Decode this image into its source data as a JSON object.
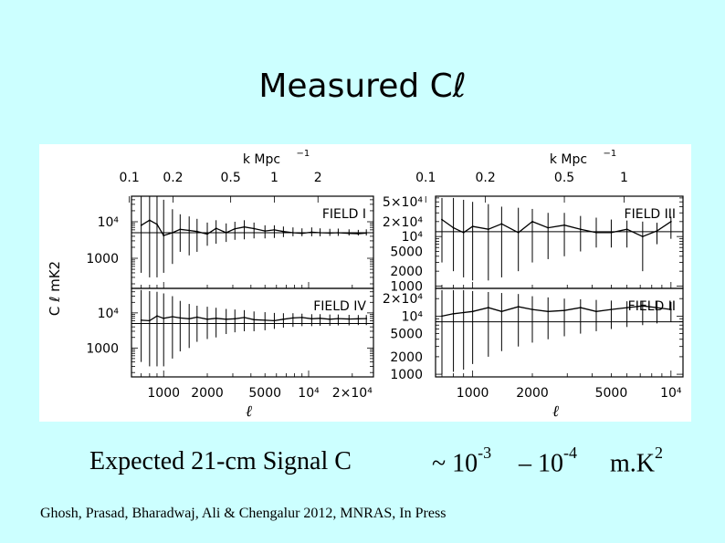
{
  "slide": {
    "title": "Measured Cℓ",
    "signal": {
      "prefix": "Expected 21-cm  Signal   C",
      "approx": "~ 10",
      "exp1": "-3",
      "dash": "– 10",
      "exp2": "-4",
      "unit": "m.K",
      "unit_exp": "2"
    },
    "citation": "Ghosh, Prasad, Bharadwaj, Ali & Chengalur 2012, MNRAS, In Press"
  },
  "colors": {
    "background": "#ccffff",
    "panel": "#ffffff",
    "ink": "#000000"
  },
  "chart_data": [
    {
      "type": "line",
      "panel": "FIELD I",
      "label": "FIELD I",
      "top_axis_label": "k Mpc",
      "top_axis_exp": "−1",
      "ylabel": "C ℓ mK2",
      "xlabel": "",
      "xscale": "log",
      "yscale": "log",
      "xlim": [
        600,
        28000
      ],
      "ylim": [
        150,
        50000
      ],
      "k_ticks": [
        0.1,
        0.2,
        0.5,
        1,
        2
      ],
      "k_tick_labels": [
        "0.1",
        "0.2",
        "0.5",
        "1",
        "2"
      ],
      "y_ticks": [
        10000,
        1000
      ],
      "y_tick_labels": [
        "10⁴",
        "1000"
      ],
      "x_ticks": [],
      "x_tick_labels": [],
      "reference_line": 5000,
      "x": [
        700,
        800,
        900,
        1000,
        1150,
        1300,
        1500,
        1700,
        2000,
        2300,
        2700,
        3100,
        3600,
        4200,
        5000,
        5800,
        6700,
        7800,
        9000,
        10500,
        12000,
        14000,
        16000,
        19000,
        22000,
        25000
      ],
      "y": [
        8000,
        11000,
        8500,
        4200,
        5000,
        6200,
        5800,
        5400,
        4600,
        6600,
        5000,
        6400,
        7200,
        6500,
        5600,
        6000,
        5400,
        5000,
        4800,
        5200,
        5000,
        4900,
        5000,
        4800,
        4700,
        4900
      ],
      "err_lo": [
        400,
        300,
        300,
        400,
        700,
        1500,
        1200,
        1500,
        2200,
        2500,
        2800,
        3200,
        3300,
        3500,
        3500,
        3600,
        3800,
        4000,
        4000,
        4000,
        4000,
        4100,
        4100,
        4200,
        4200,
        4200
      ],
      "err_hi": [
        50000,
        50000,
        50000,
        40000,
        22000,
        16000,
        14000,
        12000,
        9500,
        11000,
        9000,
        10000,
        11000,
        9500,
        8000,
        8000,
        7400,
        7000,
        6600,
        7000,
        6600,
        6400,
        6500,
        6200,
        6000,
        6200
      ]
    },
    {
      "type": "line",
      "panel": "FIELD III",
      "label": "FIELD III",
      "top_axis_label": "k Mpc",
      "top_axis_exp": "−1",
      "ylabel": "",
      "xlabel": "",
      "xscale": "log",
      "yscale": "log",
      "xlim": [
        650,
        11500
      ],
      "ylim": [
        900,
        65000
      ],
      "k_ticks": [
        0.1,
        0.2,
        0.5,
        1
      ],
      "k_tick_labels": [
        "0.1",
        "0.2",
        "0.5",
        "1"
      ],
      "y_ticks": [
        50000,
        20000,
        10000,
        5000,
        2000,
        1000
      ],
      "y_tick_labels": [
        "5×10⁴",
        "2×10⁴",
        "10⁴",
        "5000",
        "2000",
        "1000"
      ],
      "x_ticks": [],
      "x_tick_labels": [],
      "reference_line": 12500,
      "x": [
        700,
        800,
        900,
        1000,
        1200,
        1400,
        1700,
        2000,
        2400,
        2900,
        3500,
        4200,
        5000,
        6000,
        7200,
        8500,
        10000
      ],
      "y": [
        22000,
        15000,
        12000,
        16000,
        14000,
        18000,
        12000,
        20000,
        15000,
        17000,
        14000,
        12000,
        12000,
        14000,
        10000,
        13000,
        20000
      ],
      "err_lo": [
        3000,
        2000,
        1500,
        1300,
        1300,
        1500,
        2000,
        3000,
        3500,
        4000,
        5000,
        6000,
        6000,
        6000,
        2000,
        7000,
        9000
      ],
      "err_hi": [
        60000,
        60000,
        55000,
        50000,
        45000,
        40000,
        38000,
        36000,
        30000,
        30000,
        26000,
        24000,
        22000,
        21000,
        20000,
        19000,
        25000
      ]
    },
    {
      "type": "line",
      "panel": "FIELD IV",
      "label": "FIELD IV",
      "top_axis_label": "",
      "top_axis_exp": "",
      "ylabel": "",
      "xlabel": "ℓ",
      "xscale": "log",
      "yscale": "log",
      "xlim": [
        600,
        28000
      ],
      "ylim": [
        150,
        50000
      ],
      "k_ticks": [],
      "k_tick_labels": [],
      "y_ticks": [
        10000,
        1000
      ],
      "y_tick_labels": [
        "10⁴",
        "1000"
      ],
      "x_ticks": [
        1000,
        2000,
        5000,
        10000,
        20000
      ],
      "x_tick_labels": [
        "1000",
        "2000",
        "5000",
        "10⁴",
        "2×10⁴"
      ],
      "reference_line": 5000,
      "x": [
        700,
        800,
        900,
        1000,
        1150,
        1300,
        1500,
        1700,
        2000,
        2300,
        2700,
        3100,
        3600,
        4200,
        5000,
        5800,
        6700,
        7800,
        9000,
        10500,
        12000,
        14000,
        16000,
        19000,
        22000,
        25000
      ],
      "y": [
        6200,
        6000,
        8200,
        7000,
        7800,
        7200,
        6800,
        7600,
        6600,
        7000,
        6600,
        6800,
        7400,
        6400,
        6200,
        6000,
        6600,
        7200,
        7400,
        6800,
        7000,
        6600,
        6900,
        6700,
        6800,
        6900
      ],
      "err_lo": [
        400,
        300,
        300,
        300,
        500,
        800,
        1000,
        1500,
        1800,
        2000,
        2500,
        2800,
        3000,
        3000,
        3200,
        3500,
        3800,
        4000,
        4200,
        4200,
        4300,
        4300,
        4400,
        4400,
        4500,
        4500
      ],
      "err_hi": [
        45000,
        42000,
        40000,
        36000,
        30000,
        22000,
        18000,
        16000,
        15000,
        14000,
        13000,
        12500,
        12000,
        11000,
        10500,
        10000,
        9800,
        9800,
        9500,
        9200,
        9200,
        9000,
        9000,
        8800,
        8700,
        8700
      ]
    },
    {
      "type": "line",
      "panel": "FIELD II",
      "label": "FIELD II",
      "top_axis_label": "",
      "top_axis_exp": "",
      "ylabel": "",
      "xlabel": "ℓ",
      "xscale": "log",
      "yscale": "log",
      "xlim": [
        650,
        11500
      ],
      "ylim": [
        900,
        30000
      ],
      "k_ticks": [],
      "k_tick_labels": [],
      "y_ticks": [
        20000,
        10000,
        5000,
        2000,
        1000
      ],
      "y_tick_labels": [
        "2×10⁴",
        "10⁴",
        "5000",
        "2000",
        "1000"
      ],
      "x_ticks": [
        1000,
        2000,
        5000,
        10000
      ],
      "x_tick_labels": [
        "1000",
        "2000",
        "5000",
        "10⁴"
      ],
      "reference_line": 8000,
      "x": [
        700,
        800,
        900,
        1000,
        1200,
        1400,
        1700,
        2000,
        2400,
        2900,
        3500,
        4200,
        5000,
        6000,
        7200,
        8500,
        10000
      ],
      "y": [
        10000,
        11000,
        11500,
        12000,
        14000,
        12000,
        14500,
        13000,
        12000,
        12500,
        14000,
        12000,
        13000,
        14000,
        15000,
        14000,
        13000
      ],
      "err_lo": [
        1000,
        1100,
        1200,
        1500,
        2000,
        2500,
        3000,
        3500,
        4000,
        4500,
        5000,
        5500,
        6000,
        6500,
        7000,
        7500,
        8000
      ],
      "err_hi": [
        28000,
        28000,
        28000,
        27000,
        26000,
        25000,
        24000,
        22000,
        21000,
        20000,
        19500,
        19000,
        18500,
        18000,
        18000,
        18000,
        17500
      ]
    }
  ]
}
